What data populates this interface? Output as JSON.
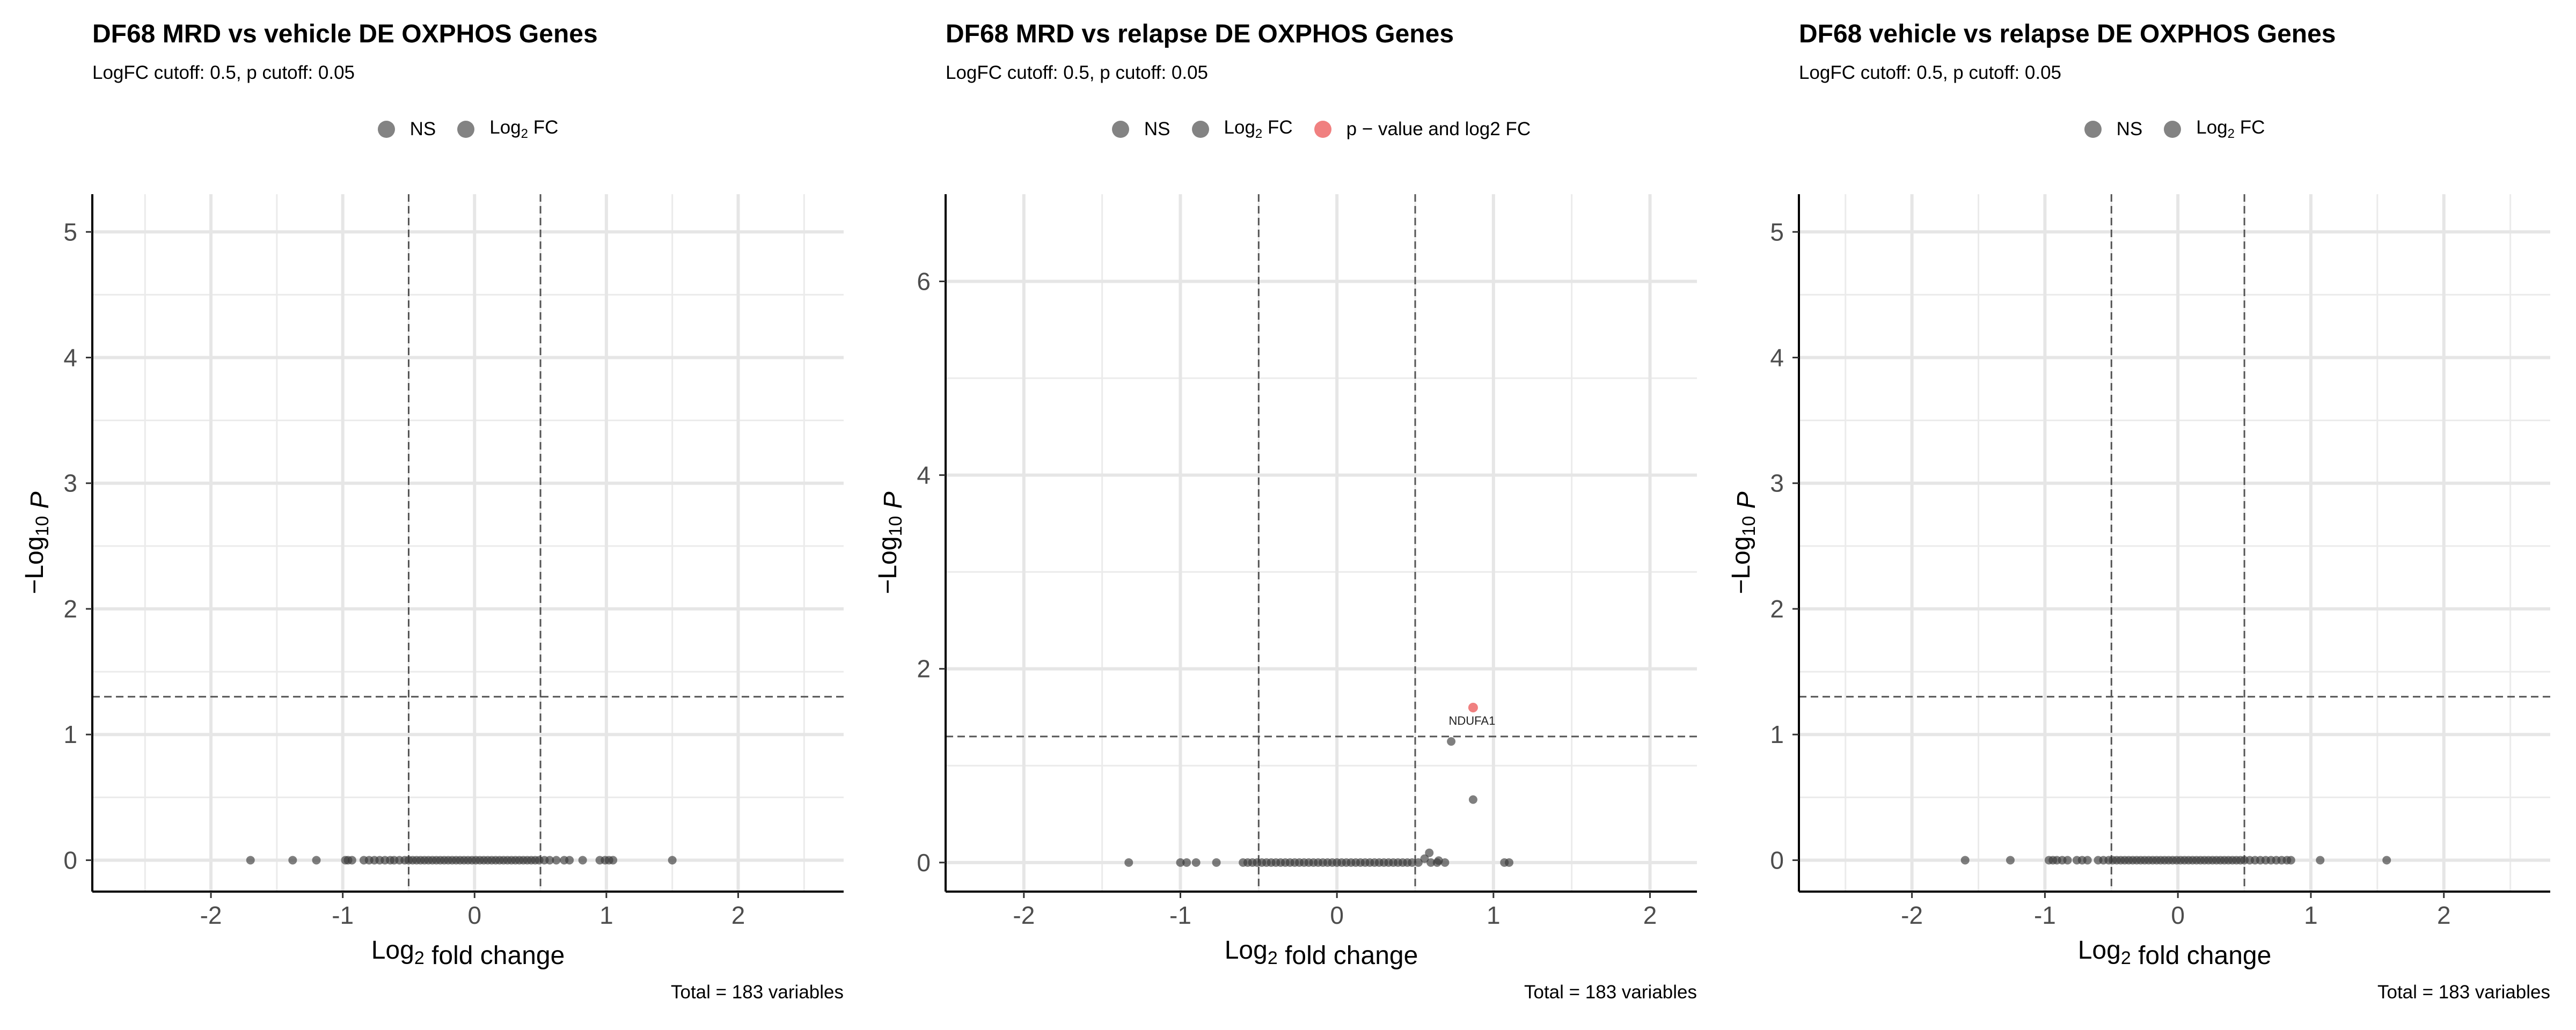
{
  "chart_data": [
    {
      "type": "scatter",
      "title": "DF68 MRD vs vehicle DE OXPHOS Genes",
      "subtitle": "LogFC cutoff: 0.5, p cutoff: 0.05",
      "caption": "Total = 183 variables",
      "xlabel": "Log2 fold change",
      "ylabel": "−Log10 P",
      "xlim": [
        -2.9,
        2.8
      ],
      "ylim": [
        -0.25,
        5.3
      ],
      "xticks": [
        -2,
        -1,
        0,
        1,
        2
      ],
      "yticks": [
        0,
        1,
        2,
        3,
        4,
        5
      ],
      "cutoffs": {
        "logfc": 0.5,
        "p": 0.05
      },
      "legend": [
        {
          "name": "NS",
          "color": "#757575"
        },
        {
          "name": "Log2 FC",
          "color": "#757575"
        }
      ],
      "labels": [],
      "points": [
        [
          -1.7,
          0
        ],
        [
          -1.38,
          0
        ],
        [
          -1.2,
          0
        ],
        [
          -0.98,
          0
        ],
        [
          -0.96,
          0
        ],
        [
          -0.93,
          0
        ],
        [
          -0.84,
          0
        ],
        [
          -0.8,
          0
        ],
        [
          -0.76,
          0
        ],
        [
          -0.72,
          0
        ],
        [
          -0.68,
          0
        ],
        [
          -0.64,
          0
        ],
        [
          -0.61,
          0
        ],
        [
          -0.57,
          0
        ],
        [
          -0.53,
          0
        ],
        [
          -0.5,
          0
        ],
        [
          -0.47,
          0
        ],
        [
          -0.44,
          0
        ],
        [
          -0.41,
          0
        ],
        [
          -0.38,
          0
        ],
        [
          -0.35,
          0
        ],
        [
          -0.32,
          0
        ],
        [
          -0.29,
          0
        ],
        [
          -0.26,
          0
        ],
        [
          -0.23,
          0
        ],
        [
          -0.2,
          0
        ],
        [
          -0.17,
          0
        ],
        [
          -0.14,
          0
        ],
        [
          -0.11,
          0
        ],
        [
          -0.08,
          0
        ],
        [
          -0.05,
          0
        ],
        [
          -0.02,
          0
        ],
        [
          0.01,
          0
        ],
        [
          0.04,
          0
        ],
        [
          0.07,
          0
        ],
        [
          0.1,
          0
        ],
        [
          0.13,
          0
        ],
        [
          0.16,
          0
        ],
        [
          0.19,
          0
        ],
        [
          0.22,
          0
        ],
        [
          0.25,
          0
        ],
        [
          0.28,
          0
        ],
        [
          0.31,
          0
        ],
        [
          0.34,
          0
        ],
        [
          0.37,
          0
        ],
        [
          0.4,
          0
        ],
        [
          0.43,
          0
        ],
        [
          0.46,
          0
        ],
        [
          0.49,
          0
        ],
        [
          0.53,
          0
        ],
        [
          0.57,
          0
        ],
        [
          0.62,
          0
        ],
        [
          0.68,
          0
        ],
        [
          0.72,
          0
        ],
        [
          0.82,
          0
        ],
        [
          0.95,
          0
        ],
        [
          0.99,
          0
        ],
        [
          1.02,
          0
        ],
        [
          1.05,
          0
        ],
        [
          1.5,
          0
        ]
      ]
    },
    {
      "type": "scatter",
      "title": "DF68 MRD vs relapse DE OXPHOS Genes",
      "subtitle": "LogFC cutoff: 0.5, p cutoff: 0.05",
      "caption": "Total = 183 variables",
      "xlabel": "Log2 fold change",
      "ylabel": "−Log10 P",
      "xlim": [
        -2.5,
        2.3
      ],
      "ylim": [
        -0.3,
        6.9
      ],
      "xticks": [
        -2,
        -1,
        0,
        1,
        2
      ],
      "yticks": [
        0,
        2,
        4,
        6
      ],
      "cutoffs": {
        "logfc": 0.5,
        "p": 0.05
      },
      "legend": [
        {
          "name": "NS",
          "color": "#757575"
        },
        {
          "name": "Log2 FC",
          "color": "#757575"
        },
        {
          "name": "p − value and log2 FC",
          "color": "#f08080"
        }
      ],
      "labels": [
        {
          "text": "NDUFA1",
          "x": 0.87,
          "y": 1.6
        }
      ],
      "points": [
        [
          -1.33,
          0
        ],
        [
          -1.0,
          0
        ],
        [
          -0.96,
          0
        ],
        [
          -0.9,
          0
        ],
        [
          -0.77,
          0
        ],
        [
          -0.6,
          0
        ],
        [
          -0.57,
          0
        ],
        [
          -0.54,
          0
        ],
        [
          -0.51,
          0
        ],
        [
          -0.48,
          0
        ],
        [
          -0.45,
          0
        ],
        [
          -0.42,
          0
        ],
        [
          -0.39,
          0
        ],
        [
          -0.36,
          0
        ],
        [
          -0.33,
          0
        ],
        [
          -0.3,
          0
        ],
        [
          -0.27,
          0
        ],
        [
          -0.24,
          0
        ],
        [
          -0.21,
          0
        ],
        [
          -0.18,
          0
        ],
        [
          -0.15,
          0
        ],
        [
          -0.12,
          0
        ],
        [
          -0.09,
          0
        ],
        [
          -0.06,
          0
        ],
        [
          -0.03,
          0
        ],
        [
          0.0,
          0
        ],
        [
          0.03,
          0
        ],
        [
          0.06,
          0
        ],
        [
          0.09,
          0
        ],
        [
          0.12,
          0
        ],
        [
          0.15,
          0
        ],
        [
          0.18,
          0
        ],
        [
          0.21,
          0
        ],
        [
          0.24,
          0
        ],
        [
          0.27,
          0
        ],
        [
          0.3,
          0
        ],
        [
          0.33,
          0
        ],
        [
          0.36,
          0
        ],
        [
          0.39,
          0
        ],
        [
          0.42,
          0
        ],
        [
          0.45,
          0
        ],
        [
          0.48,
          0
        ],
        [
          0.52,
          0
        ],
        [
          0.56,
          0.04
        ],
        [
          0.6,
          0
        ],
        [
          0.64,
          0
        ],
        [
          0.69,
          0
        ],
        [
          1.07,
          0
        ],
        [
          1.1,
          0
        ],
        [
          0.59,
          0.1
        ],
        [
          0.65,
          0.02
        ],
        [
          0.73,
          1.25
        ],
        [
          0.87,
          0.65
        ]
      ],
      "highlight": [
        [
          0.87,
          1.6
        ]
      ]
    },
    {
      "type": "scatter",
      "title": "DF68 vehicle vs relapse DE OXPHOS Genes",
      "subtitle": "LogFC cutoff: 0.5, p cutoff: 0.05",
      "caption": "Total = 183 variables",
      "xlabel": "Log2 fold change",
      "ylabel": "−Log10 P",
      "xlim": [
        -2.85,
        2.8
      ],
      "ylim": [
        -0.25,
        5.3
      ],
      "xticks": [
        -2,
        -1,
        0,
        1,
        2
      ],
      "yticks": [
        0,
        1,
        2,
        3,
        4,
        5
      ],
      "cutoffs": {
        "logfc": 0.5,
        "p": 0.05
      },
      "legend": [
        {
          "name": "NS",
          "color": "#757575"
        },
        {
          "name": "Log2 FC",
          "color": "#757575"
        }
      ],
      "labels": [],
      "points": [
        [
          -1.6,
          0
        ],
        [
          -1.26,
          0
        ],
        [
          -0.97,
          0
        ],
        [
          -0.94,
          0
        ],
        [
          -0.91,
          0
        ],
        [
          -0.87,
          0
        ],
        [
          -0.83,
          0
        ],
        [
          -0.76,
          0
        ],
        [
          -0.72,
          0
        ],
        [
          -0.68,
          0
        ],
        [
          -0.6,
          0
        ],
        [
          -0.56,
          0
        ],
        [
          -0.52,
          0
        ],
        [
          -0.49,
          0
        ],
        [
          -0.46,
          0
        ],
        [
          -0.43,
          0
        ],
        [
          -0.4,
          0
        ],
        [
          -0.37,
          0
        ],
        [
          -0.34,
          0
        ],
        [
          -0.31,
          0
        ],
        [
          -0.28,
          0
        ],
        [
          -0.25,
          0
        ],
        [
          -0.22,
          0
        ],
        [
          -0.19,
          0
        ],
        [
          -0.16,
          0
        ],
        [
          -0.13,
          0
        ],
        [
          -0.1,
          0
        ],
        [
          -0.07,
          0
        ],
        [
          -0.04,
          0
        ],
        [
          -0.01,
          0
        ],
        [
          0.02,
          0
        ],
        [
          0.05,
          0
        ],
        [
          0.08,
          0
        ],
        [
          0.11,
          0
        ],
        [
          0.14,
          0
        ],
        [
          0.17,
          0
        ],
        [
          0.2,
          0
        ],
        [
          0.23,
          0
        ],
        [
          0.26,
          0
        ],
        [
          0.29,
          0
        ],
        [
          0.32,
          0
        ],
        [
          0.35,
          0
        ],
        [
          0.38,
          0
        ],
        [
          0.41,
          0
        ],
        [
          0.44,
          0
        ],
        [
          0.47,
          0
        ],
        [
          0.5,
          0
        ],
        [
          0.54,
          0
        ],
        [
          0.58,
          0
        ],
        [
          0.62,
          0
        ],
        [
          0.66,
          0
        ],
        [
          0.7,
          0
        ],
        [
          0.74,
          0
        ],
        [
          0.78,
          0
        ],
        [
          0.82,
          0
        ],
        [
          0.85,
          0
        ],
        [
          1.07,
          0
        ],
        [
          1.57,
          0
        ]
      ]
    }
  ]
}
